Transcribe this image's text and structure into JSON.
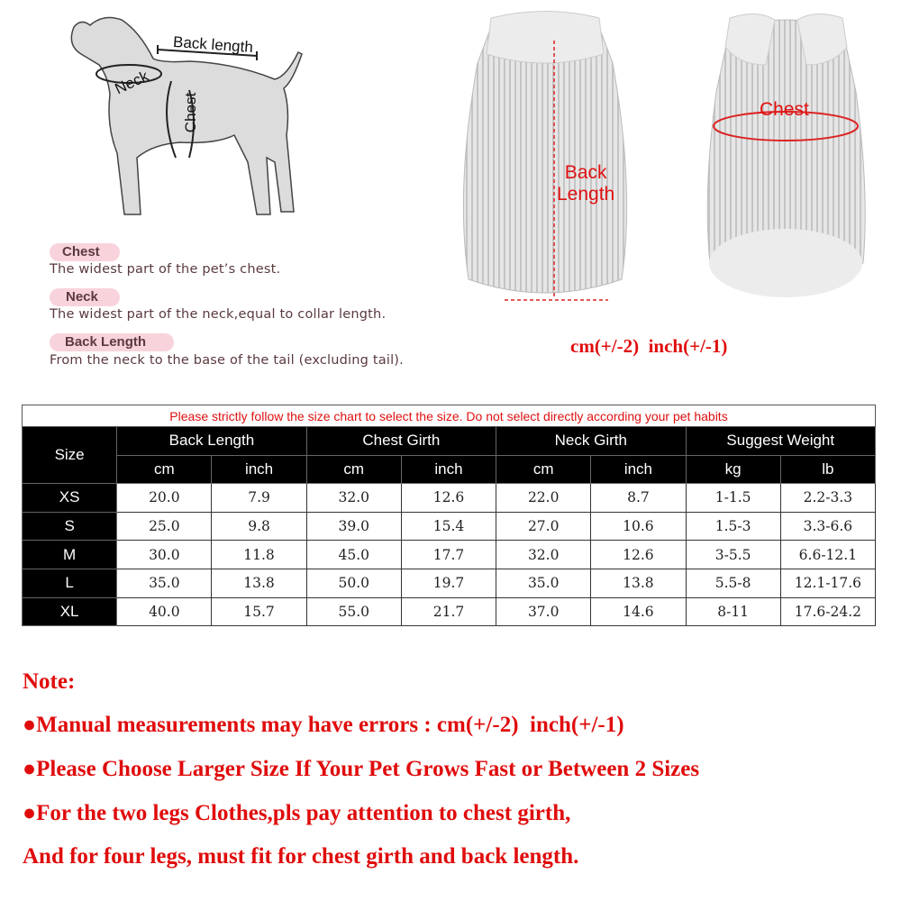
{
  "diagram": {
    "back_length": "Back length",
    "neck": "Neck",
    "chest": "Chest"
  },
  "definitions": [
    {
      "term": "Chest",
      "text": "The widest part of the pet’s chest."
    },
    {
      "term": "Neck",
      "text": "The widest part of the neck,equal to collar length."
    },
    {
      "term": "Back Length",
      "text": "From the neck to the base of the tail (excluding tail)."
    }
  ],
  "garment_labels": {
    "back": "Back\nLength",
    "back_line1": "Back",
    "back_line2": "Length",
    "chest": "Chest"
  },
  "tolerance": "cm(+/-2)  inch(+/-1)",
  "table": {
    "warning": "Please strictly follow the size chart to select the size. Do not select directly according your pet habits",
    "size_header": "Size",
    "groups": [
      "Back Length",
      "Chest Girth",
      "Neck Girth",
      "Suggest Weight"
    ],
    "units": [
      "cm",
      "inch",
      "cm",
      "inch",
      "cm",
      "inch",
      "kg",
      "lb"
    ],
    "rows": [
      {
        "size": "XS",
        "values": [
          "20.0",
          "7.9",
          "32.0",
          "12.6",
          "22.0",
          "8.7",
          "1-1.5",
          "2.2-3.3"
        ]
      },
      {
        "size": "S",
        "values": [
          "25.0",
          "9.8",
          "39.0",
          "15.4",
          "27.0",
          "10.6",
          "1.5-3",
          "3.3-6.6"
        ]
      },
      {
        "size": "M",
        "values": [
          "30.0",
          "11.8",
          "45.0",
          "17.7",
          "32.0",
          "12.6",
          "3-5.5",
          "6.6-12.1"
        ]
      },
      {
        "size": "L",
        "values": [
          "35.0",
          "13.8",
          "50.0",
          "19.7",
          "35.0",
          "13.8",
          "5.5-8",
          "12.1-17.6"
        ]
      },
      {
        "size": "XL",
        "values": [
          "40.0",
          "15.7",
          "55.0",
          "21.7",
          "37.0",
          "14.6",
          "8-11",
          "17.6-24.2"
        ]
      }
    ]
  },
  "notes": {
    "title": "Note:",
    "items": [
      "●Manual measurements may have errors : cm(+/-2)  inch(+/-1)",
      "●Please Choose Larger Size If Your Pet Grows Fast or Between 2 Sizes",
      "●For the two legs Clothes,pls pay attention to chest girth,",
      "And for four legs, must fit for chest girth and back length."
    ]
  },
  "colors": {
    "accent_red": "#e00c0c",
    "pill_pink": "#f8d3dc",
    "header_black": "#000000"
  }
}
